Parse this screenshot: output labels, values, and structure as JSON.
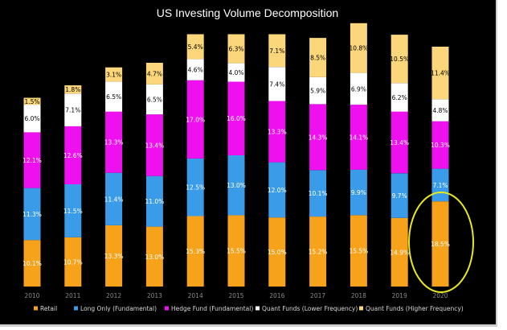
{
  "chart_data": {
    "type": "bar",
    "stacked": true,
    "title": "US Investing Volume Decomposition",
    "xlabel": "",
    "ylabel": "",
    "grid": false,
    "legend_position": "bottom",
    "categories": [
      "2010",
      "2011",
      "2012",
      "2013",
      "2014",
      "2015",
      "2016",
      "2017",
      "2018",
      "2019",
      "2020"
    ],
    "series": [
      {
        "name": "Retail",
        "color": "#f7a21b",
        "values": [
          10.1,
          10.7,
          13.3,
          13.0,
          15.3,
          15.5,
          15.0,
          15.2,
          15.5,
          14.9,
          18.5
        ],
        "labels": [
          "10.1%",
          "10.7%",
          "13.3%",
          "13.0%",
          "15.3%",
          "15.5%",
          "15.0%",
          "15.2%",
          "15.5%",
          "14.9%",
          "18.5%"
        ]
      },
      {
        "name": "Long Only (Fundamental)",
        "color": "#3a9ce8",
        "values": [
          11.3,
          11.5,
          11.4,
          11.0,
          12.5,
          13.0,
          12.0,
          10.1,
          9.9,
          9.7,
          7.1
        ],
        "labels": [
          "11.3%",
          "11.5%",
          "11.4%",
          "11.0%",
          "12.5%",
          "13.0%",
          "12.0%",
          "10.1%",
          "9.9%",
          "9.7%",
          "7.1%"
        ]
      },
      {
        "name": "Hedge Fund (Fundamental)",
        "color": "#ee10ee",
        "values": [
          12.1,
          12.6,
          13.3,
          13.4,
          17.0,
          16.0,
          13.3,
          14.3,
          14.1,
          13.4,
          10.3
        ],
        "labels": [
          "12.1%",
          "12.6%",
          "13.3%",
          "13.4%",
          "17.0%",
          "16.0%",
          "13.3%",
          "14.3%",
          "14.1%",
          "13.4%",
          "10.3%"
        ]
      },
      {
        "name": "Quant Funds (Lower Frequency)",
        "color": "#ffffff",
        "values": [
          6.0,
          7.1,
          6.5,
          6.5,
          4.6,
          4.0,
          7.4,
          5.9,
          6.9,
          6.2,
          4.8
        ],
        "labels": [
          "6.0%",
          "7.1%",
          "6.5%",
          "6.5%",
          "4.6%",
          "4.0%",
          "7.4%",
          "5.9%",
          "6.9%",
          "6.2%",
          "4.8%"
        ]
      },
      {
        "name": "Quant Funds (Higher Frequency)",
        "color": "#fbd67a",
        "values": [
          1.5,
          1.8,
          3.1,
          4.7,
          5.4,
          6.3,
          7.1,
          8.5,
          10.8,
          10.5,
          11.4
        ],
        "labels": [
          "1.5%",
          "1.8%",
          "3.1%",
          "4.7%",
          "5.4%",
          "6.3%",
          "7.1%",
          "8.5%",
          "10.8%",
          "10.5%",
          "11.4%"
        ]
      }
    ],
    "highlight": {
      "category": "2020",
      "shape": "ellipse",
      "color": "#e8e81a"
    }
  }
}
